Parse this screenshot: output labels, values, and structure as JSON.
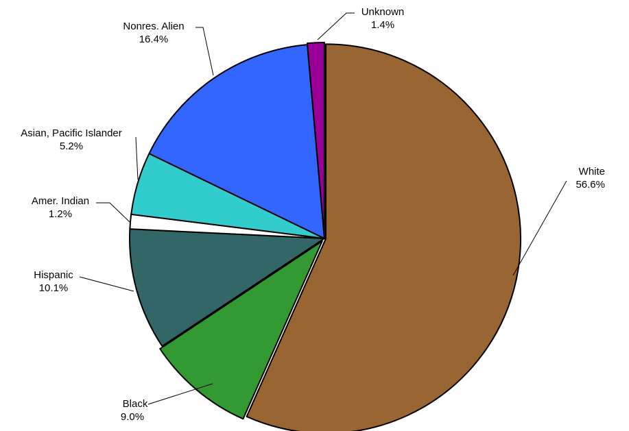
{
  "chart_data": {
    "type": "pie",
    "title": "",
    "start_angle_deg": 0,
    "direction": "clockwise",
    "slices": [
      {
        "name": "White",
        "value": 56.6,
        "label": "56.6%",
        "color": "#996633"
      },
      {
        "name": "Black",
        "value": 9.0,
        "label": "9.0%",
        "color": "#339933"
      },
      {
        "name": "Hispanic",
        "value": 10.1,
        "label": "10.1%",
        "color": "#336666"
      },
      {
        "name": "Amer. Indian",
        "value": 1.2,
        "label": "1.2%",
        "color": "#ffffff"
      },
      {
        "name": "Asian, Pacific Islander",
        "value": 5.2,
        "label": "5.2%",
        "color": "#33cccc"
      },
      {
        "name": "Nonres. Alien",
        "value": 16.4,
        "label": "16.4%",
        "color": "#3366ff"
      },
      {
        "name": "Unknown",
        "value": 1.4,
        "label": "1.4%",
        "color": "#990099"
      }
    ]
  }
}
